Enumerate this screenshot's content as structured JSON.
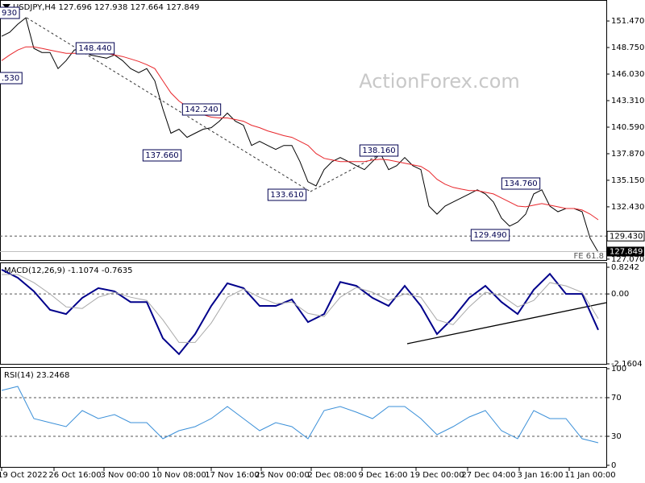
{
  "chart_data": [
    {
      "type": "line",
      "title": "USDJPY,H4  127.696 127.938 127.664 127.849",
      "watermark": "ActionForex.com",
      "ylim": [
        126.98,
        153.62
      ],
      "yticks": [
        {
          "value": 151.47,
          "label": "151.470"
        },
        {
          "value": 148.75,
          "label": "148.750"
        },
        {
          "value": 146.03,
          "label": "146.030"
        },
        {
          "value": 143.31,
          "label": "143.310"
        },
        {
          "value": 140.59,
          "label": "140.590"
        },
        {
          "value": 137.87,
          "label": "137.870"
        },
        {
          "value": 135.15,
          "label": "135.150"
        },
        {
          "value": 132.43,
          "label": "132.430"
        },
        {
          "value": 127.07,
          "label": "127.070"
        }
      ],
      "hlines": [
        {
          "value": 129.43,
          "label": "129.430"
        }
      ],
      "last_price": 127.849,
      "annotations": [
        "930",
        "148.440",
        ".530",
        "142.240",
        "137.660",
        "133.610",
        "138.160",
        "134.760",
        "129.490",
        "FE 61.8"
      ],
      "series": [
        {
          "color": "#000000",
          "values": [
            149.9,
            150.31,
            151.14,
            151.8,
            148.66,
            148.24,
            148.24,
            146.59,
            147.41,
            148.49,
            148.66,
            147.99,
            147.83,
            147.66,
            147.99,
            147.41,
            146.59,
            146.17,
            146.59,
            145.34,
            142.45,
            139.97,
            140.38,
            139.55,
            139.97,
            140.38,
            140.54,
            141.2,
            142.03,
            141.2,
            140.79,
            138.72,
            139.14,
            138.72,
            138.31,
            138.72,
            138.72,
            137.07,
            135.0,
            134.58,
            136.24,
            137.07,
            137.48,
            137.07,
            136.65,
            136.24,
            137.07,
            137.89,
            136.24,
            136.65,
            137.48,
            136.65,
            136.24,
            132.51,
            131.68,
            132.51,
            132.93,
            133.34,
            133.75,
            134.17,
            133.75,
            132.93,
            131.27,
            130.45,
            130.86,
            131.68,
            133.75,
            134.17,
            132.51,
            131.93,
            132.26,
            132.26,
            131.93,
            129.2,
            127.79
          ]
        },
        {
          "color": "#e8262b",
          "values": [
            147.41,
            147.99,
            148.49,
            148.82,
            148.82,
            148.66,
            148.49,
            148.32,
            148.16,
            148.16,
            148.16,
            148.16,
            148.16,
            148.16,
            147.99,
            147.83,
            147.58,
            147.33,
            147.0,
            146.59,
            145.34,
            144.1,
            143.27,
            142.7,
            142.2,
            141.87,
            141.62,
            141.54,
            141.54,
            141.37,
            141.2,
            140.79,
            140.54,
            140.21,
            139.97,
            139.72,
            139.55,
            139.14,
            138.72,
            137.89,
            137.4,
            137.23,
            137.07,
            137.07,
            137.07,
            137.07,
            137.23,
            137.31,
            137.23,
            137.07,
            136.9,
            136.74,
            136.57,
            136.07,
            135.25,
            134.75,
            134.42,
            134.25,
            134.09,
            134.09,
            133.92,
            133.75,
            133.34,
            132.93,
            132.51,
            132.43,
            132.6,
            132.76,
            132.6,
            132.43,
            132.26,
            132.26,
            132.1,
            131.68,
            131.1
          ]
        }
      ]
    },
    {
      "type": "line",
      "title": "MACD(12,26,9) -1.1074 -0.7635",
      "ylim": [
        -2.1604,
        0.8242
      ],
      "yticks": [
        0.8242,
        {
          "value": 0,
          "label": "0.00"
        },
        -2.1604
      ],
      "hlines": [
        0
      ],
      "series": [
        {
          "color": "#00008b",
          "values": [
            0.75,
            0.5,
            0.08,
            -0.49,
            -0.62,
            -0.12,
            0.18,
            0.08,
            -0.25,
            -0.25,
            -1.37,
            -1.86,
            -1.24,
            -0.37,
            0.33,
            0.18,
            -0.37,
            -0.37,
            -0.17,
            -0.87,
            -0.62,
            0.37,
            0.25,
            -0.12,
            -0.37,
            0.25,
            -0.37,
            -1.24,
            -0.74,
            -0.12,
            0.25,
            -0.25,
            -0.62,
            0.13,
            0.62,
            0.0,
            0.0,
            -1.11
          ]
        },
        {
          "color": "#a9a9a9",
          "values": [
            0.6,
            0.6,
            0.35,
            0.0,
            -0.4,
            -0.45,
            -0.1,
            0.05,
            -0.1,
            -0.2,
            -0.8,
            -1.5,
            -1.5,
            -0.9,
            -0.1,
            0.15,
            -0.1,
            -0.3,
            -0.25,
            -0.6,
            -0.7,
            -0.1,
            0.2,
            0.05,
            -0.2,
            0.0,
            -0.1,
            -0.8,
            -0.95,
            -0.4,
            0.05,
            -0.05,
            -0.4,
            -0.2,
            0.35,
            0.25,
            0.05,
            -0.76
          ]
        }
      ]
    },
    {
      "type": "line",
      "title": "RSI(14) 23.2468",
      "ylim": [
        0,
        100
      ],
      "yticks": [
        100,
        70,
        30,
        0
      ],
      "hlines": [
        70,
        30
      ],
      "x_tick_labels": [
        "19 Oct 2022",
        "26 Oct 16:00",
        "3 Nov 00:00",
        "10 Nov 08:00",
        "17 Nov 16:00",
        "25 Nov 00:00",
        "2 Dec 08:00",
        "9 Dec 16:00",
        "19 Dec 00:00",
        "27 Dec 04:00",
        "3 Jan 16:00",
        "11 Jan 00:00"
      ],
      "series": [
        {
          "color": "#3a8fd8",
          "values": [
            77.5,
            81.7,
            48.3,
            44.2,
            40,
            56.7,
            48.3,
            52.5,
            44.2,
            44.2,
            27.5,
            35.8,
            40,
            48.3,
            60.8,
            48.3,
            35.8,
            44.2,
            40,
            27.5,
            56.7,
            60.8,
            55,
            48.3,
            60.8,
            60.8,
            48.3,
            31.7,
            40,
            50,
            56.7,
            35.8,
            27.5,
            56.7,
            48.3,
            48.3,
            27.5,
            23.3
          ]
        }
      ]
    }
  ]
}
